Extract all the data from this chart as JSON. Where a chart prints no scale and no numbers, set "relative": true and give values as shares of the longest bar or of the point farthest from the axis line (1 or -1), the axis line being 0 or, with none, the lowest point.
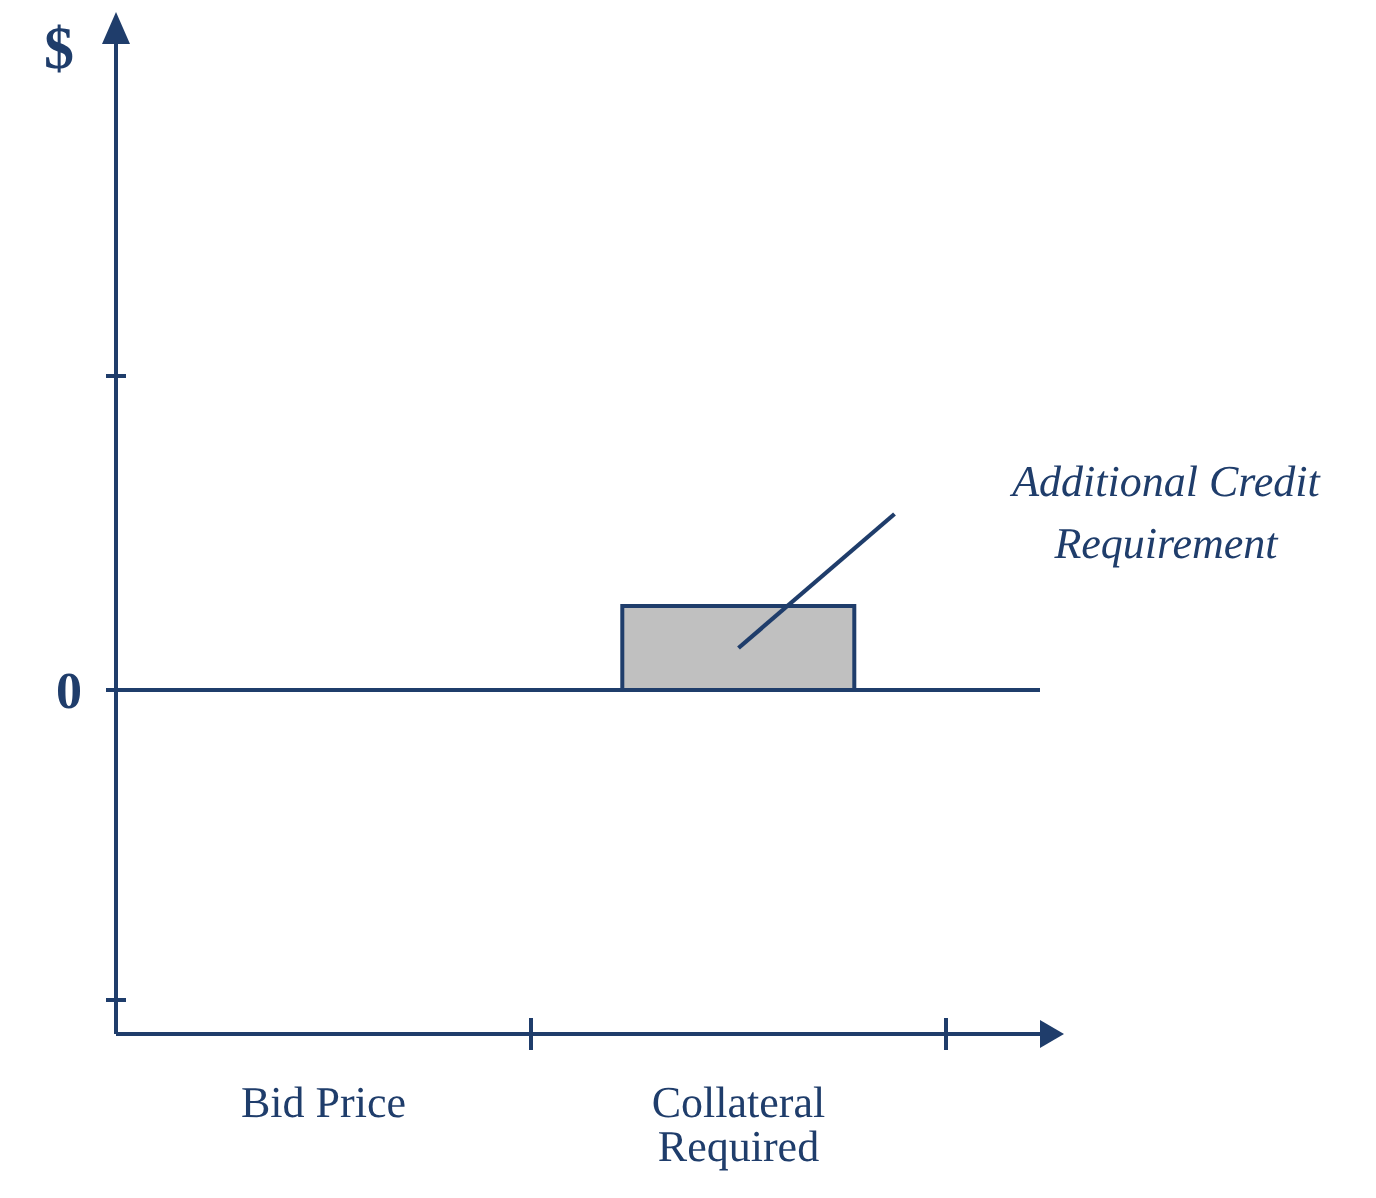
{
  "chart_data": {
    "type": "bar",
    "relative": true,
    "categories": [
      "Bid Price",
      "Collateral Required"
    ],
    "values": [
      0,
      1
    ],
    "color": "#c0c0c0",
    "ref_lines": [
      {
        "axis": "y",
        "value": 0,
        "label": "0"
      }
    ],
    "annotations": [
      "$",
      "Additional Credit Requirement"
    ],
    "grid": false,
    "legend": false
  }
}
